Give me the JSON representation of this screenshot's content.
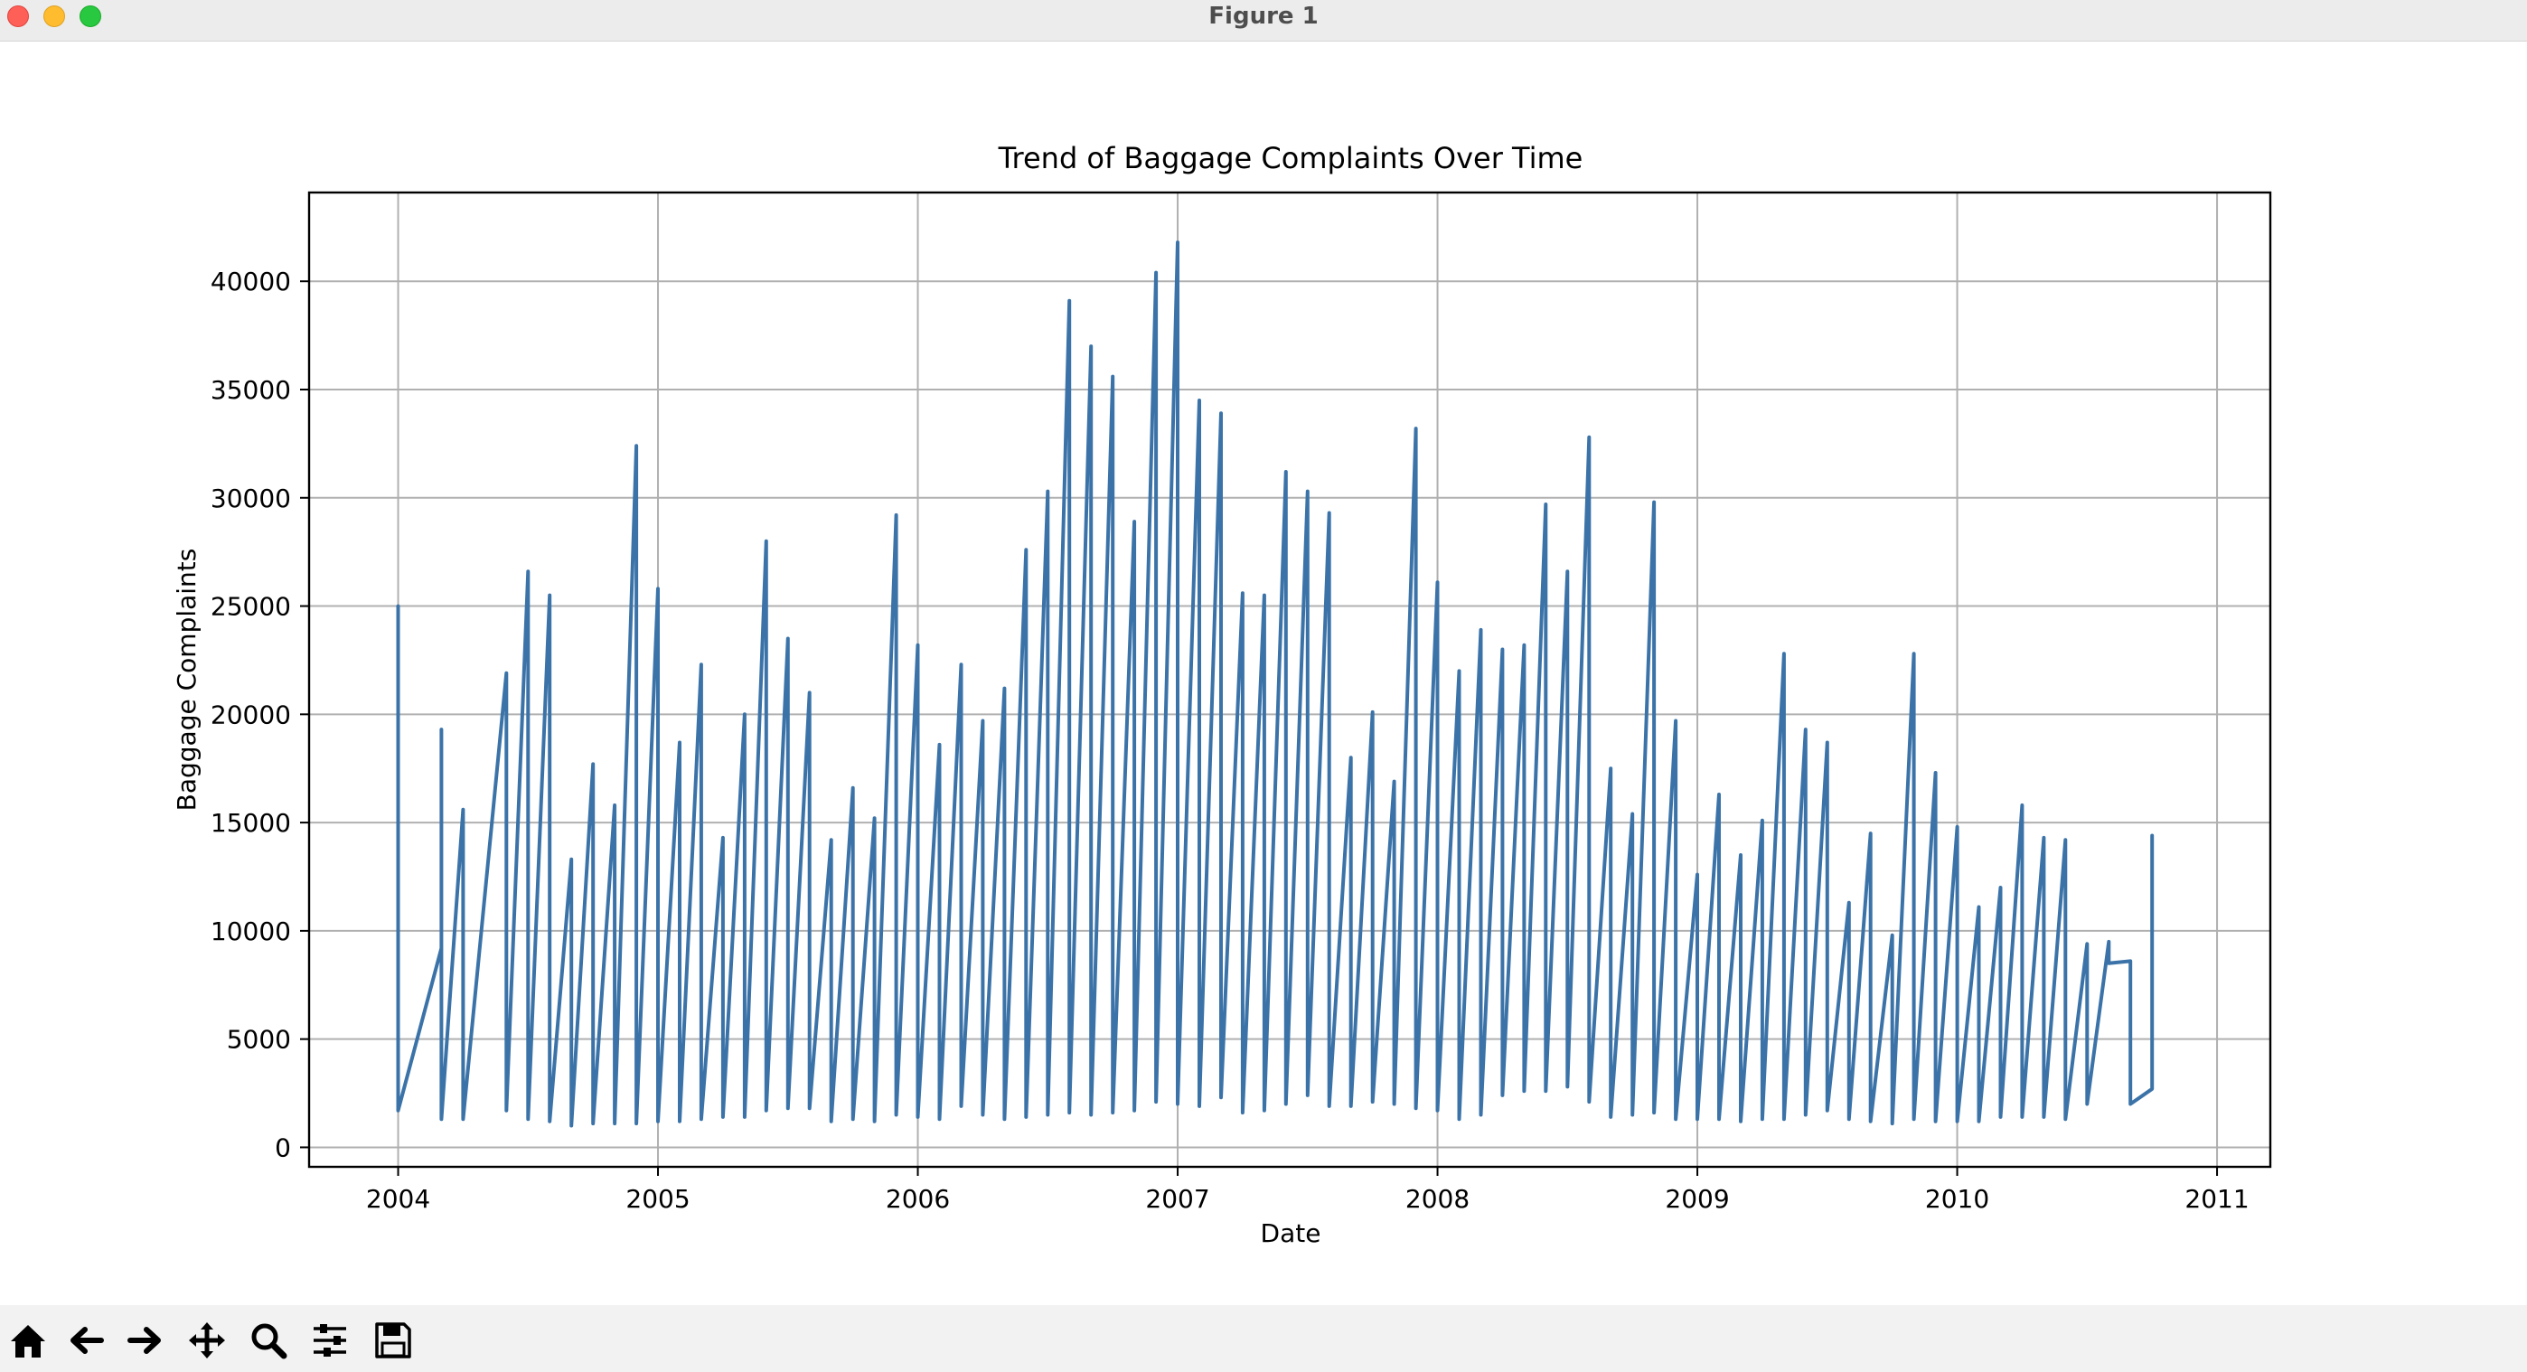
{
  "window": {
    "title": "Figure 1"
  },
  "toolbar": {
    "buttons": [
      {
        "name": "home-button",
        "icon": "home-icon"
      },
      {
        "name": "back-button",
        "icon": "arrow-left-icon"
      },
      {
        "name": "forward-button",
        "icon": "arrow-right-icon"
      },
      {
        "name": "pan-button",
        "icon": "move-icon"
      },
      {
        "name": "zoom-button",
        "icon": "magnifier-icon"
      },
      {
        "name": "configure-subplots-button",
        "icon": "sliders-icon"
      },
      {
        "name": "save-button",
        "icon": "floppy-disk-icon"
      }
    ]
  },
  "chart_data": {
    "type": "line",
    "title": "Trend of Baggage Complaints Over Time",
    "xlabel": "Date",
    "ylabel": "Baggage Complaints",
    "xlim": [
      "2003-08-28",
      "2011-03-15"
    ],
    "ylim": [
      -900,
      44100
    ],
    "xticks": [
      "2004",
      "2005",
      "2006",
      "2007",
      "2008",
      "2009",
      "2010",
      "2011"
    ],
    "yticks": [
      0,
      5000,
      10000,
      15000,
      20000,
      25000,
      30000,
      35000,
      40000
    ],
    "grid": true,
    "line_color": "#3b73a8",
    "series": [
      {
        "values": [
          [
            "2004-01",
            25000
          ],
          [
            "2004-01",
            12400
          ],
          [
            "2004-01",
            1700
          ],
          [
            "2004-03",
            9200
          ],
          [
            "2004-03",
            19300
          ],
          [
            "2004-03",
            1300
          ],
          [
            "2004-04",
            15600
          ],
          [
            "2004-04",
            1300
          ],
          [
            "2004-06",
            21900
          ],
          [
            "2004-06",
            1700
          ],
          [
            "2004-07",
            26600
          ],
          [
            "2004-07",
            1300
          ],
          [
            "2004-08",
            25500
          ],
          [
            "2004-08",
            1200
          ],
          [
            "2004-09",
            13300
          ],
          [
            "2004-09",
            1000
          ],
          [
            "2004-10",
            17700
          ],
          [
            "2004-10",
            1100
          ],
          [
            "2004-11",
            15800
          ],
          [
            "2004-11",
            1100
          ],
          [
            "2004-12",
            32400
          ],
          [
            "2004-12",
            1100
          ],
          [
            "2005-01",
            25800
          ],
          [
            "2005-01",
            1200
          ],
          [
            "2005-02",
            18700
          ],
          [
            "2005-02",
            1200
          ],
          [
            "2005-03",
            22300
          ],
          [
            "2005-03",
            1300
          ],
          [
            "2005-04",
            14300
          ],
          [
            "2005-04",
            1400
          ],
          [
            "2005-05",
            20000
          ],
          [
            "2005-05",
            1400
          ],
          [
            "2005-06",
            28000
          ],
          [
            "2005-06",
            1700
          ],
          [
            "2005-07",
            23500
          ],
          [
            "2005-07",
            1800
          ],
          [
            "2005-08",
            21000
          ],
          [
            "2005-08",
            1800
          ],
          [
            "2005-09",
            14200
          ],
          [
            "2005-09",
            1200
          ],
          [
            "2005-10",
            16600
          ],
          [
            "2005-10",
            1300
          ],
          [
            "2005-11",
            15200
          ],
          [
            "2005-11",
            1200
          ],
          [
            "2005-12",
            29200
          ],
          [
            "2005-12",
            1500
          ],
          [
            "2006-01",
            23200
          ],
          [
            "2006-01",
            1400
          ],
          [
            "2006-02",
            18600
          ],
          [
            "2006-02",
            1300
          ],
          [
            "2006-03",
            22300
          ],
          [
            "2006-03",
            1900
          ],
          [
            "2006-04",
            19700
          ],
          [
            "2006-04",
            1500
          ],
          [
            "2006-05",
            21200
          ],
          [
            "2006-05",
            1300
          ],
          [
            "2006-06",
            27600
          ],
          [
            "2006-06",
            1400
          ],
          [
            "2006-07",
            30300
          ],
          [
            "2006-07",
            1500
          ],
          [
            "2006-08",
            39100
          ],
          [
            "2006-08",
            1600
          ],
          [
            "2006-09",
            37000
          ],
          [
            "2006-09",
            1500
          ],
          [
            "2006-10",
            35600
          ],
          [
            "2006-10",
            1600
          ],
          [
            "2006-11",
            28900
          ],
          [
            "2006-11",
            1700
          ],
          [
            "2006-12",
            40400
          ],
          [
            "2006-12",
            2100
          ],
          [
            "2007-01",
            41800
          ],
          [
            "2007-01",
            2000
          ],
          [
            "2007-02",
            34500
          ],
          [
            "2007-02",
            1900
          ],
          [
            "2007-03",
            33900
          ],
          [
            "2007-03",
            2300
          ],
          [
            "2007-04",
            25600
          ],
          [
            "2007-04",
            1600
          ],
          [
            "2007-05",
            25500
          ],
          [
            "2007-05",
            1700
          ],
          [
            "2007-06",
            31200
          ],
          [
            "2007-06",
            2000
          ],
          [
            "2007-07",
            30300
          ],
          [
            "2007-07",
            2400
          ],
          [
            "2007-08",
            29300
          ],
          [
            "2007-08",
            1900
          ],
          [
            "2007-09",
            18000
          ],
          [
            "2007-09",
            1900
          ],
          [
            "2007-10",
            20100
          ],
          [
            "2007-10",
            2100
          ],
          [
            "2007-11",
            16900
          ],
          [
            "2007-11",
            2000
          ],
          [
            "2007-12",
            33200
          ],
          [
            "2007-12",
            1800
          ],
          [
            "2008-01",
            26100
          ],
          [
            "2008-01",
            1700
          ],
          [
            "2008-02",
            22000
          ],
          [
            "2008-02",
            1300
          ],
          [
            "2008-03",
            23900
          ],
          [
            "2008-03",
            1500
          ],
          [
            "2008-04",
            23000
          ],
          [
            "2008-04",
            2400
          ],
          [
            "2008-05",
            23200
          ],
          [
            "2008-05",
            2600
          ],
          [
            "2008-06",
            29700
          ],
          [
            "2008-06",
            2600
          ],
          [
            "2008-07",
            26600
          ],
          [
            "2008-07",
            2800
          ],
          [
            "2008-08",
            32800
          ],
          [
            "2008-08",
            2100
          ],
          [
            "2008-09",
            17500
          ],
          [
            "2008-09",
            1400
          ],
          [
            "2008-10",
            15400
          ],
          [
            "2008-10",
            1500
          ],
          [
            "2008-11",
            29800
          ],
          [
            "2008-11",
            1600
          ],
          [
            "2008-12",
            19700
          ],
          [
            "2008-12",
            1300
          ],
          [
            "2009-01",
            12600
          ],
          [
            "2009-01",
            1300
          ],
          [
            "2009-02",
            16300
          ],
          [
            "2009-02",
            1300
          ],
          [
            "2009-03",
            13500
          ],
          [
            "2009-03",
            1200
          ],
          [
            "2009-04",
            15100
          ],
          [
            "2009-04",
            1300
          ],
          [
            "2009-05",
            22800
          ],
          [
            "2009-05",
            1300
          ],
          [
            "2009-06",
            19300
          ],
          [
            "2009-06",
            1500
          ],
          [
            "2009-07",
            18700
          ],
          [
            "2009-07",
            1700
          ],
          [
            "2009-08",
            11300
          ],
          [
            "2009-08",
            1300
          ],
          [
            "2009-09",
            14500
          ],
          [
            "2009-09",
            1200
          ],
          [
            "2009-10",
            9800
          ],
          [
            "2009-10",
            1100
          ],
          [
            "2009-11",
            22800
          ],
          [
            "2009-11",
            1300
          ],
          [
            "2009-12",
            17300
          ],
          [
            "2009-12",
            1200
          ],
          [
            "2010-01",
            14800
          ],
          [
            "2010-01",
            1200
          ],
          [
            "2010-02",
            11100
          ],
          [
            "2010-02",
            1200
          ],
          [
            "2010-03",
            12000
          ],
          [
            "2010-03",
            1400
          ],
          [
            "2010-04",
            15800
          ],
          [
            "2010-04",
            1400
          ],
          [
            "2010-05",
            14300
          ],
          [
            "2010-05",
            1400
          ],
          [
            "2010-06",
            14200
          ],
          [
            "2010-06",
            1300
          ],
          [
            "2010-07",
            9400
          ],
          [
            "2010-07",
            2000
          ],
          [
            "2010-08",
            9500
          ],
          [
            "2010-08",
            8500
          ],
          [
            "2010-09",
            8600
          ],
          [
            "2010-09",
            2000
          ],
          [
            "2010-10",
            2700
          ],
          [
            "2010-10",
            14400
          ]
        ]
      }
    ]
  }
}
